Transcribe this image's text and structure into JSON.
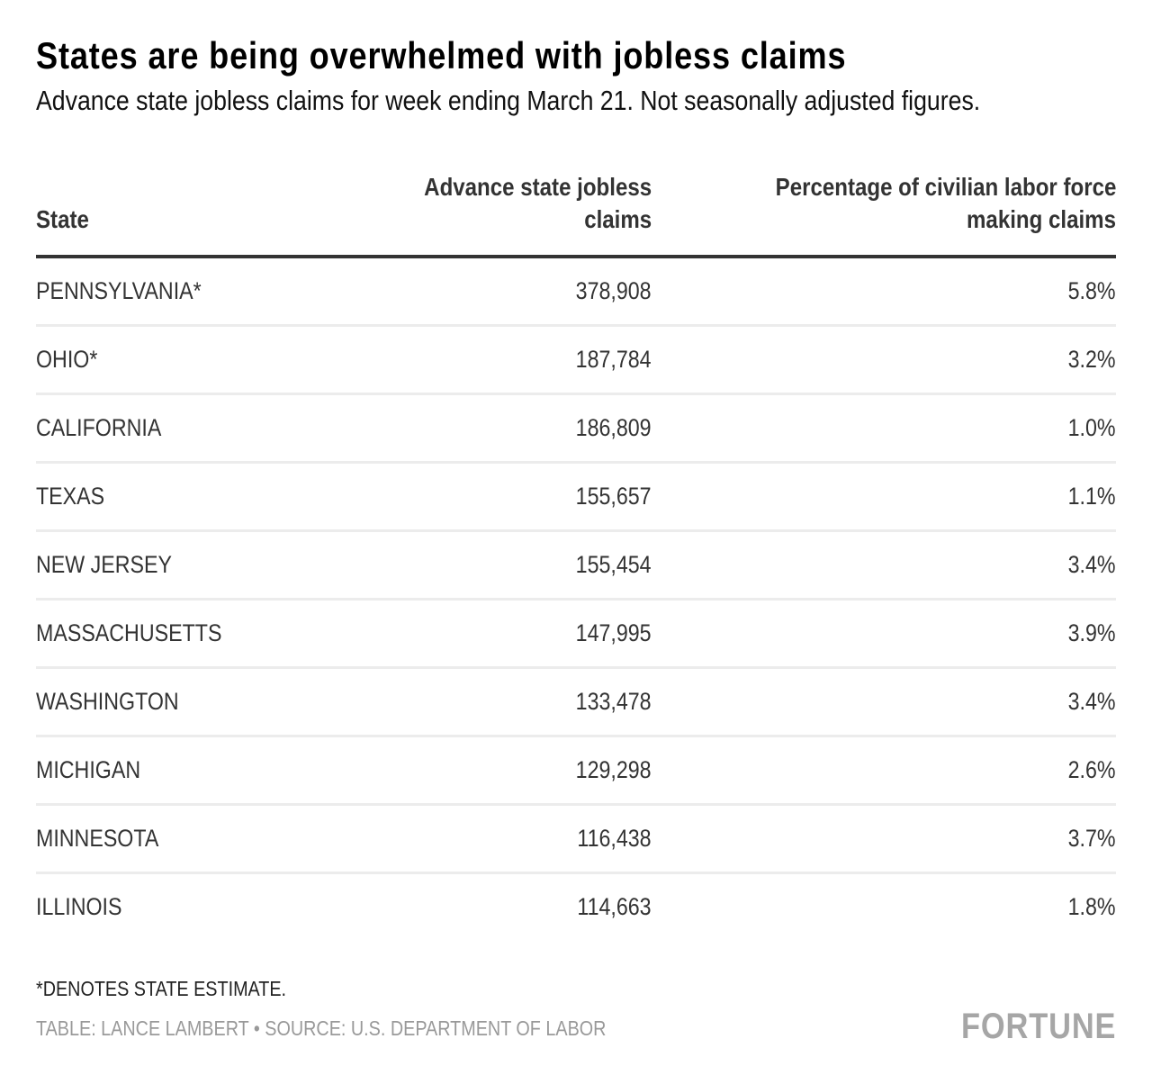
{
  "header": {
    "title": "States are being overwhelmed with jobless claims",
    "subtitle": "Advance state jobless claims for week ending March 21. Not seasonally adjusted figures."
  },
  "table": {
    "columns": {
      "state": "State",
      "claims_line1": "Advance state jobless",
      "claims_line2": "claims",
      "pct_line1": "Percentage of civilian labor force",
      "pct_line2": "making claims"
    },
    "rows": [
      {
        "state": "PENNSYLVANIA*",
        "claims": "378,908",
        "pct": "5.8%"
      },
      {
        "state": "OHIO*",
        "claims": "187,784",
        "pct": "3.2%"
      },
      {
        "state": "CALIFORNIA",
        "claims": "186,809",
        "pct": "1.0%"
      },
      {
        "state": "TEXAS",
        "claims": "155,657",
        "pct": "1.1%"
      },
      {
        "state": "NEW JERSEY",
        "claims": "155,454",
        "pct": "3.4%"
      },
      {
        "state": "MASSACHUSETTS",
        "claims": "147,995",
        "pct": "3.9%"
      },
      {
        "state": "WASHINGTON",
        "claims": "133,478",
        "pct": "3.4%"
      },
      {
        "state": "MICHIGAN",
        "claims": "129,298",
        "pct": "2.6%"
      },
      {
        "state": "MINNESOTA",
        "claims": "116,438",
        "pct": "3.7%"
      },
      {
        "state": "ILLINOIS",
        "claims": "114,663",
        "pct": "1.8%"
      }
    ]
  },
  "footer": {
    "footnote": "*DENOTES STATE ESTIMATE.",
    "credit": "TABLE: LANCE LAMBERT • SOURCE: U.S. DEPARTMENT OF LABOR",
    "logo": "FORTUNE"
  },
  "colors": {
    "text": "#333333",
    "title": "#000000",
    "rule": "#333333",
    "row_divider": "#ececec",
    "muted": "#999999",
    "logo": "#a6a6a6"
  }
}
